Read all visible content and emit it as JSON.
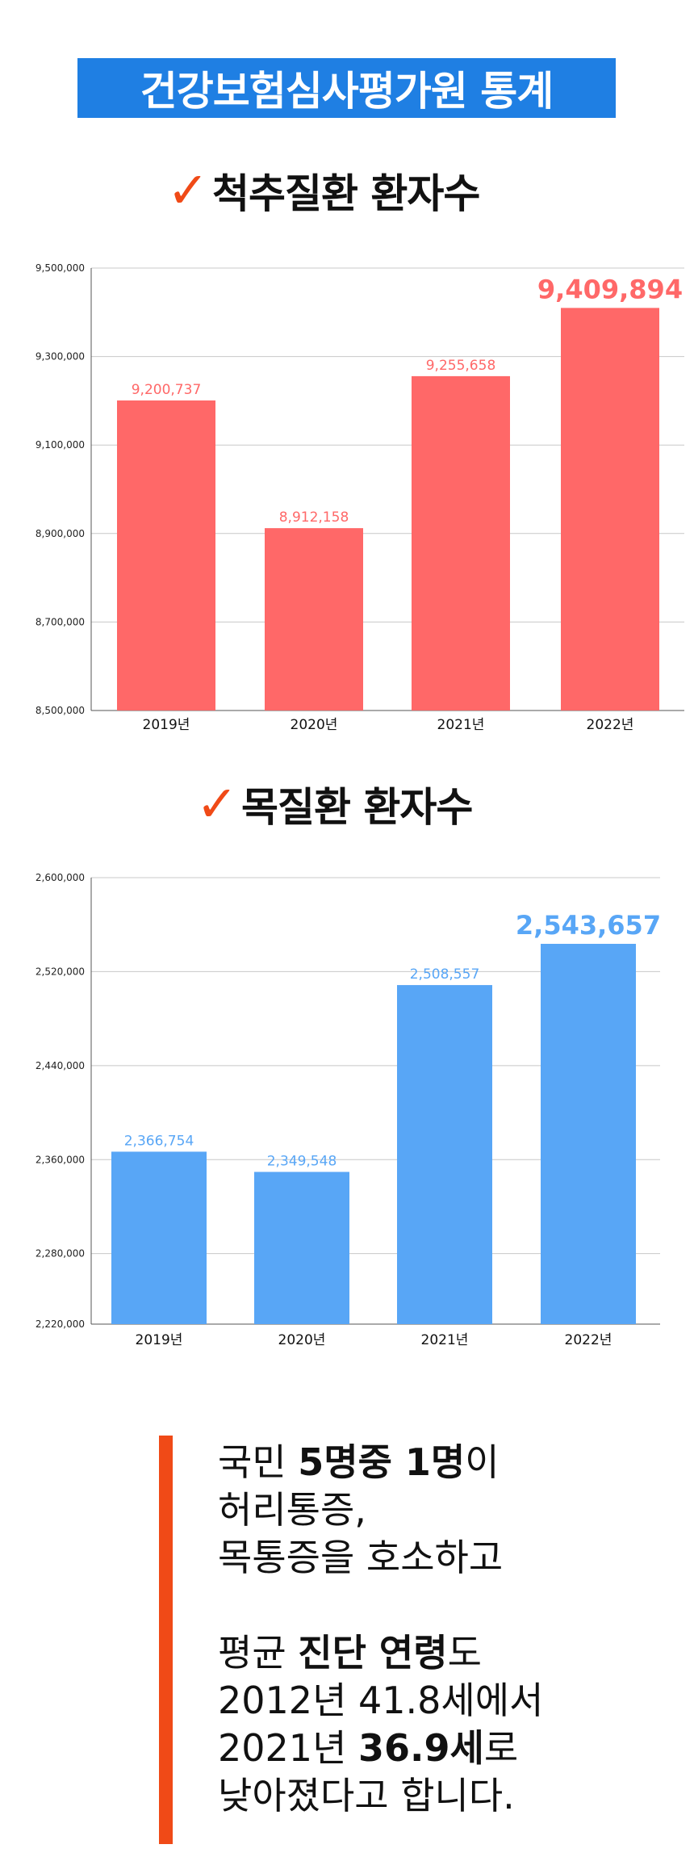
{
  "header": {
    "title": "건강보험심사평가원 통계"
  },
  "sections": [
    {
      "check_icon": "checkmark-icon",
      "title": "척추질환 환자수"
    },
    {
      "check_icon": "checkmark-icon",
      "title": "목질환 환자수"
    }
  ],
  "chart_data": [
    {
      "type": "bar",
      "title": "척추질환 환자수",
      "categories": [
        "2019년",
        "2020년",
        "2021년",
        "2022년"
      ],
      "values": [
        9200737,
        8912158,
        9255658,
        9409894
      ],
      "value_labels": [
        "9,200,737",
        "8,912,158",
        "9,255,658",
        "9,409,894"
      ],
      "ylim": [
        8500000,
        9500000
      ],
      "yticks": [
        8500000,
        8700000,
        8900000,
        9100000,
        9300000,
        9500000
      ],
      "ytick_labels": [
        "8,500,000",
        "8,700,000",
        "8,900,000",
        "9,100,000",
        "9,300,000",
        "9,500,000"
      ],
      "color": "#ff6868",
      "grid": true
    },
    {
      "type": "bar",
      "title": "목질환 환자수",
      "categories": [
        "2019년",
        "2020년",
        "2021년",
        "2022년"
      ],
      "values": [
        2366754,
        2349548,
        2508557,
        2543657
      ],
      "value_labels": [
        "2,366,754",
        "2,349,548",
        "2,508,557",
        "2,543,657"
      ],
      "ylim": [
        2220000,
        2600000
      ],
      "yticks": [
        2220000,
        2280000,
        2360000,
        2440000,
        2520000,
        2600000
      ],
      "ytick_labels": [
        "2,220,000",
        "2,280,000",
        "2,360,000",
        "2,440,000",
        "2,520,000",
        "2,600,000"
      ],
      "color": "#58a6f6",
      "grid": true
    }
  ],
  "note": {
    "l1_a": "국민 ",
    "l1_b": "5명중 1명",
    "l1_c": "이",
    "l2": "허리통증,",
    "l3": "목통증을 호소하고",
    "l4_a": "평균 ",
    "l4_b": "진단 연령",
    "l4_c": "도",
    "l5": "2012년 41.8세에서",
    "l6_a": "2021년 ",
    "l6_b": "36.9세",
    "l6_c": "로",
    "l7": "낮아졌다고 합니다."
  }
}
